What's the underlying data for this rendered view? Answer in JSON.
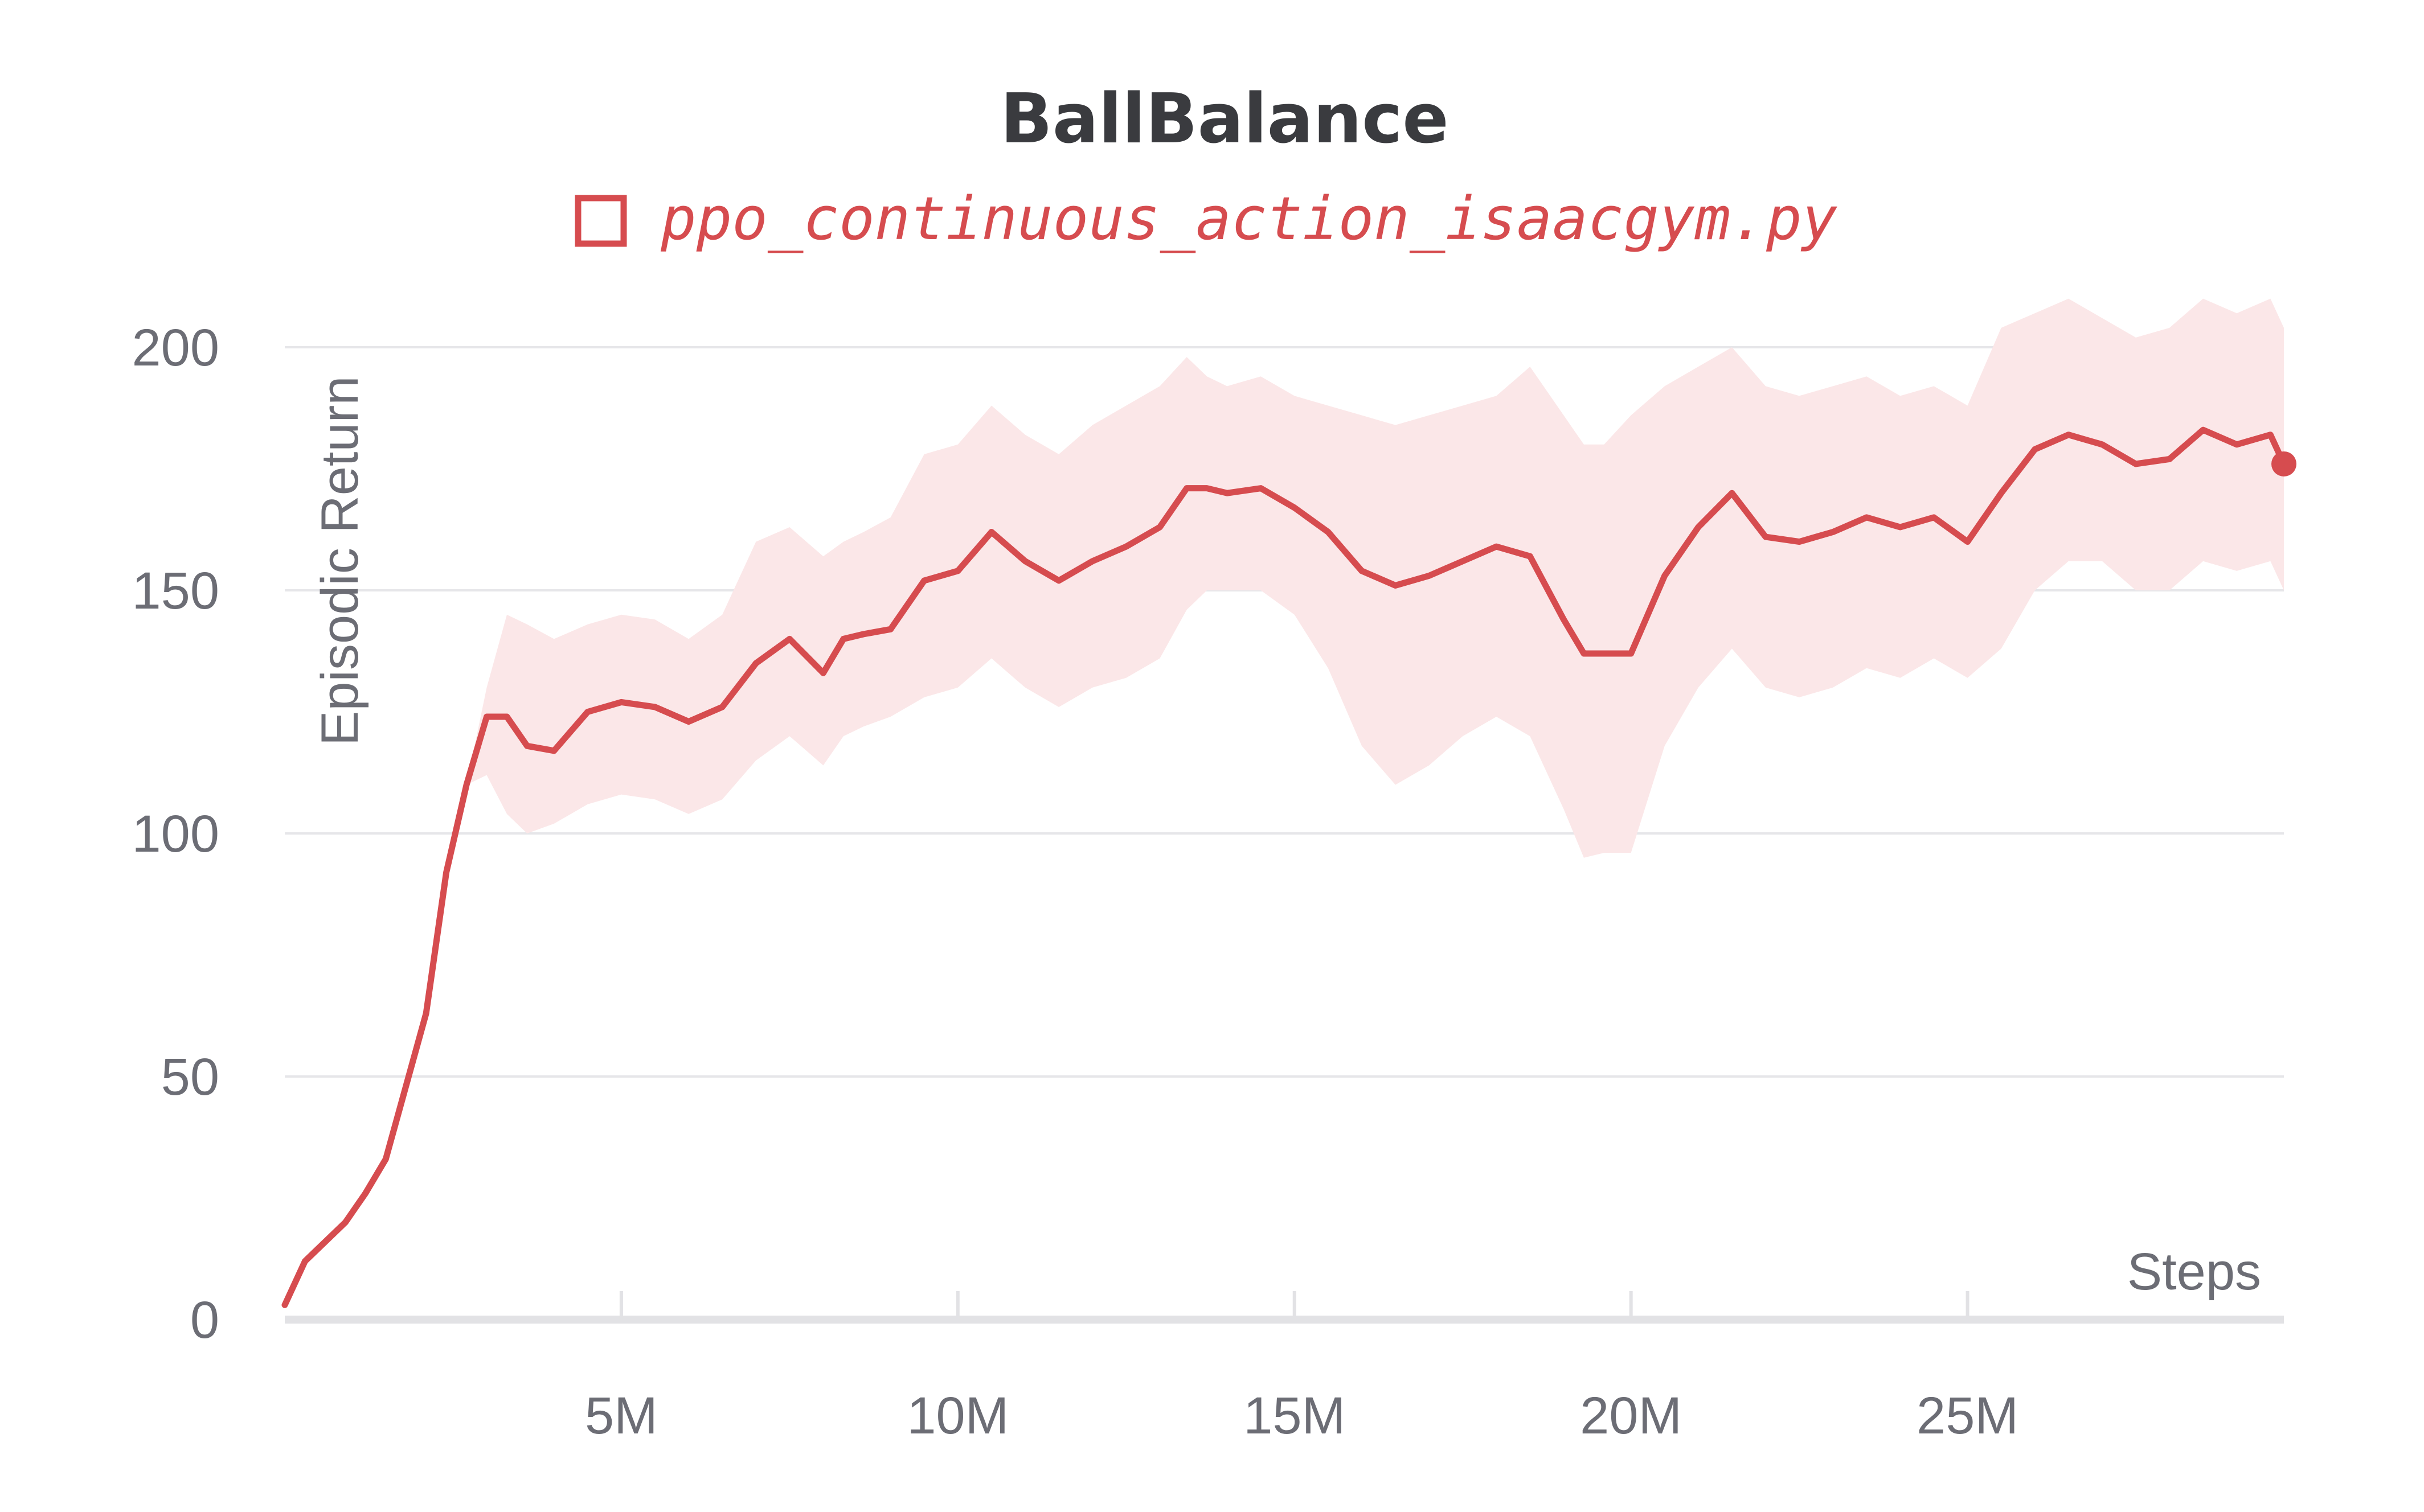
{
  "chart_data": {
    "type": "line",
    "title": "BallBalance",
    "xlabel": "Steps",
    "ylabel": "Episodic Return",
    "xlim": [
      0,
      29.7
    ],
    "ylim": [
      0,
      200
    ],
    "x_unit": "M",
    "x_ticks": [
      5,
      10,
      15,
      20,
      25
    ],
    "x_tick_labels": [
      "5M",
      "10M",
      "15M",
      "20M",
      "25M"
    ],
    "y_ticks": [
      0,
      50,
      100,
      150,
      200
    ],
    "y_tick_labels": [
      "0",
      "50",
      "100",
      "150",
      "200"
    ],
    "grid": true,
    "legend": {
      "position": "top-center",
      "entries": [
        "ppo_continuous_action_isaacgym.py"
      ]
    },
    "colors": {
      "line": "#d64c4f",
      "band": "#fbe7e8",
      "grid": "#e6e6e9",
      "axis": "#e2e2e5"
    },
    "series": [
      {
        "name": "ppo_continuous_action_isaacgym.py",
        "x": [
          0.0,
          0.3,
          0.6,
          0.9,
          1.2,
          1.5,
          1.8,
          2.1,
          2.4,
          2.7,
          3.0,
          3.3,
          3.6,
          4.0,
          4.5,
          5.0,
          5.5,
          6.0,
          6.5,
          7.0,
          7.5,
          8.0,
          8.3,
          8.6,
          9.0,
          9.5,
          10.0,
          10.5,
          11.0,
          11.5,
          12.0,
          12.5,
          13.0,
          13.4,
          13.7,
          14.0,
          14.5,
          15.0,
          15.5,
          16.0,
          16.5,
          17.0,
          17.5,
          18.0,
          18.5,
          19.0,
          19.3,
          19.6,
          20.0,
          20.5,
          21.0,
          21.5,
          22.0,
          22.5,
          23.0,
          23.5,
          24.0,
          24.5,
          25.0,
          25.5,
          26.0,
          26.5,
          27.0,
          27.5,
          28.0,
          28.5,
          29.0,
          29.5,
          29.7
        ],
        "y": [
          3,
          12,
          16,
          20,
          26,
          33,
          48,
          63,
          92,
          110,
          124,
          124,
          118,
          117,
          125,
          127,
          126,
          123,
          126,
          135,
          140,
          133,
          140,
          141,
          142,
          152,
          154,
          162,
          156,
          152,
          156,
          159,
          163,
          171,
          171,
          170,
          171,
          167,
          162,
          154,
          151,
          153,
          156,
          159,
          157,
          144,
          137,
          137,
          137,
          153,
          163,
          170,
          161,
          160,
          162,
          165,
          163,
          165,
          160,
          170,
          179,
          182,
          180,
          176,
          177,
          183,
          180,
          182,
          176
        ],
        "y_upper": [
          3,
          12,
          16,
          20,
          26,
          33,
          48,
          63,
          92,
          110,
          130,
          145,
          143,
          140,
          143,
          145,
          144,
          140,
          145,
          160,
          163,
          157,
          160,
          162,
          165,
          178,
          180,
          188,
          182,
          178,
          184,
          188,
          192,
          198,
          194,
          192,
          194,
          190,
          188,
          186,
          184,
          186,
          188,
          190,
          196,
          186,
          180,
          180,
          186,
          192,
          196,
          200,
          192,
          190,
          192,
          194,
          190,
          192,
          188,
          204,
          207,
          210,
          206,
          202,
          204,
          210,
          207,
          210,
          204
        ],
        "y_lower": [
          3,
          12,
          16,
          20,
          26,
          33,
          48,
          63,
          92,
          110,
          112,
          104,
          100,
          102,
          106,
          108,
          107,
          104,
          107,
          115,
          120,
          114,
          120,
          122,
          124,
          128,
          130,
          136,
          130,
          126,
          130,
          132,
          136,
          146,
          150,
          150,
          150,
          145,
          134,
          118,
          110,
          114,
          120,
          124,
          120,
          105,
          95,
          96,
          96,
          118,
          130,
          138,
          130,
          128,
          130,
          134,
          132,
          136,
          132,
          138,
          150,
          156,
          156,
          150,
          150,
          156,
          154,
          156,
          150
        ]
      }
    ]
  }
}
